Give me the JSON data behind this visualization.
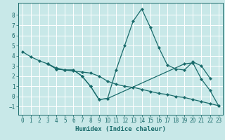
{
  "xlabel": "Humidex (Indice chaleur)",
  "background_color": "#c8e8e8",
  "grid_color": "#ffffff",
  "line_color": "#1a6b6b",
  "xlim": [
    -0.5,
    23.5
  ],
  "ylim": [
    -1.8,
    9.2
  ],
  "yticks": [
    -1,
    0,
    1,
    2,
    3,
    4,
    5,
    6,
    7,
    8
  ],
  "xticks": [
    0,
    1,
    2,
    3,
    4,
    5,
    6,
    7,
    8,
    9,
    10,
    11,
    12,
    13,
    14,
    15,
    16,
    17,
    18,
    19,
    20,
    21,
    22,
    23
  ],
  "series1_x": [
    0,
    1,
    2,
    3,
    4,
    5,
    6,
    7,
    8,
    9,
    10,
    11,
    12,
    13,
    14,
    15,
    16,
    17,
    18,
    19,
    20,
    21,
    22,
    23
  ],
  "series1_y": [
    4.4,
    3.9,
    3.5,
    3.2,
    2.8,
    2.6,
    2.5,
    2.4,
    2.3,
    2.0,
    1.5,
    1.2,
    1.0,
    0.9,
    0.7,
    0.5,
    0.3,
    0.2,
    0.0,
    -0.1,
    -0.3,
    -0.5,
    -0.7,
    -0.9
  ],
  "series2_x": [
    3,
    4,
    5,
    6,
    7,
    8,
    9,
    10,
    11,
    12,
    13,
    14,
    15,
    16,
    17,
    18,
    19,
    20,
    21,
    22
  ],
  "series2_y": [
    3.2,
    2.7,
    2.6,
    2.6,
    2.0,
    1.0,
    -0.3,
    -0.2,
    2.6,
    5.0,
    7.4,
    8.6,
    6.8,
    4.8,
    3.1,
    2.7,
    2.6,
    3.4,
    3.0,
    1.8
  ],
  "series3_x": [
    3,
    4,
    5,
    6,
    7,
    8,
    9,
    10,
    19,
    20,
    21,
    22,
    23
  ],
  "series3_y": [
    3.2,
    2.7,
    2.6,
    2.6,
    2.0,
    1.0,
    -0.3,
    -0.2,
    3.2,
    3.3,
    1.7,
    0.6,
    -0.9
  ],
  "tick_fontsize": 5.5,
  "xlabel_fontsize": 6.5,
  "marker_size": 2.5,
  "line_width": 0.9
}
